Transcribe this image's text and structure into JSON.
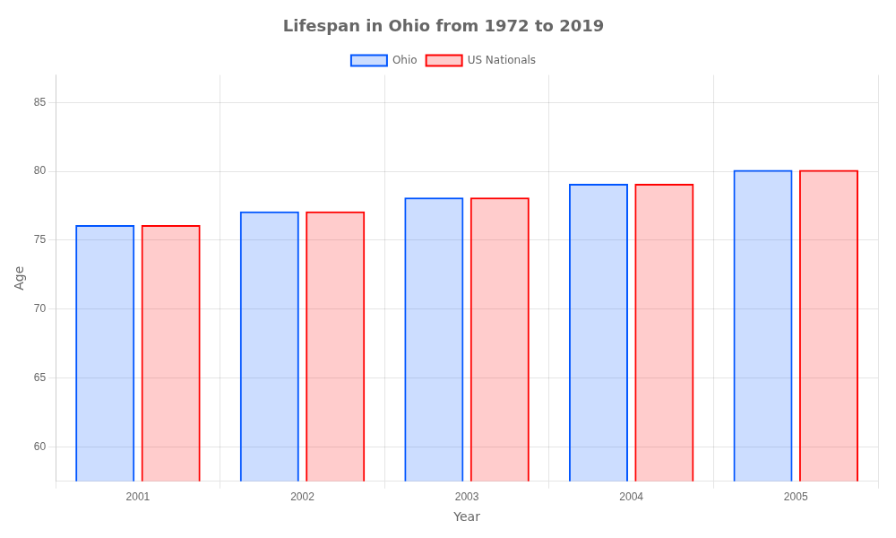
{
  "chart_data": {
    "type": "bar",
    "title": "Lifespan in Ohio from 1972 to 2019",
    "x_label": "Year",
    "y_label": "Age",
    "categories": [
      "2001",
      "2002",
      "2003",
      "2004",
      "2005"
    ],
    "series": [
      {
        "name": "Ohio",
        "color": "#0055ff",
        "values": [
          76.1,
          77.1,
          78.1,
          79.1,
          80.1
        ]
      },
      {
        "name": "US Nationals",
        "color": "#ff0000",
        "values": [
          76.1,
          77.1,
          78.1,
          79.1,
          80.1
        ]
      }
    ],
    "ylim": [
      57.5,
      87
    ],
    "yticks": [
      60,
      65,
      70,
      75,
      80,
      85
    ],
    "grid": true,
    "legend": "top"
  }
}
